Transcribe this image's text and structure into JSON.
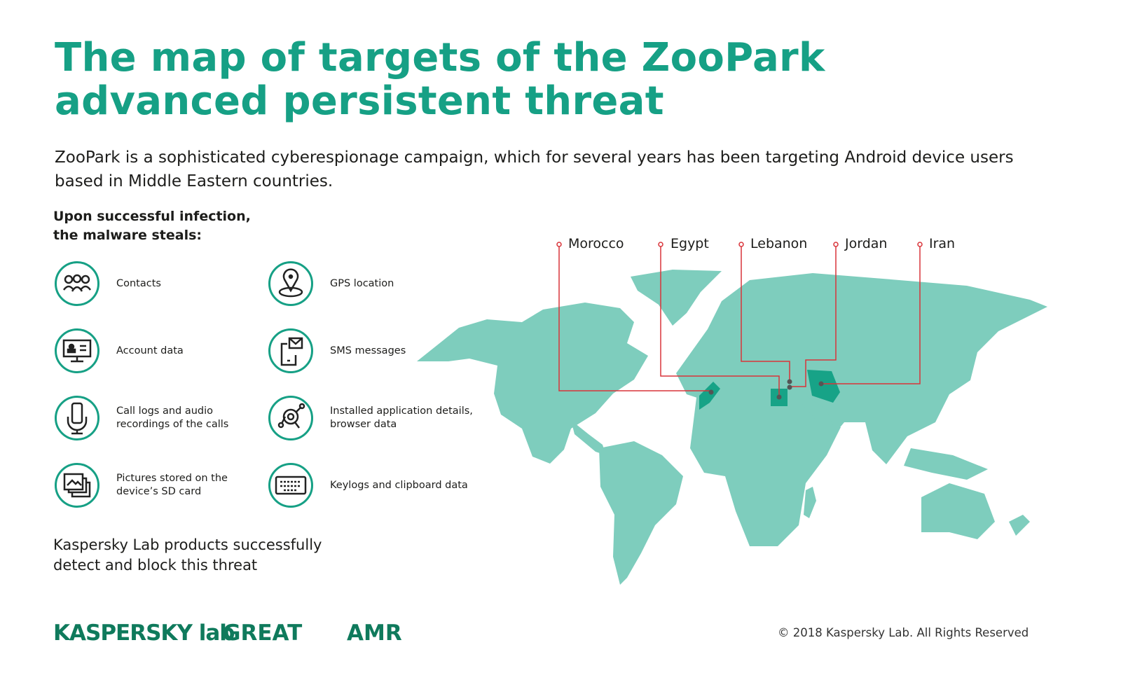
{
  "title": "The map of targets of the ZooPark advanced persistent threat",
  "subtitle": "ZooPark is a sophisticated cyberespionage campaign, which for several years has been targeting Android device users based in Middle Eastern countries.",
  "steals_heading": "Upon successful infection, the malware steals:",
  "items": [
    {
      "label": "Contacts",
      "icon": "contacts-icon"
    },
    {
      "label": "GPS location",
      "icon": "location-pin-icon"
    },
    {
      "label": "Account data",
      "icon": "account-monitor-icon"
    },
    {
      "label": "SMS messages",
      "icon": "sms-phone-icon"
    },
    {
      "label": "Call logs and audio recordings of the calls",
      "icon": "microphone-phone-icon"
    },
    {
      "label": "Installed application details, browser data",
      "icon": "app-search-icon"
    },
    {
      "label": "Pictures stored on the device’s SD card",
      "icon": "pictures-icon"
    },
    {
      "label": "Keylogs and clipboard data",
      "icon": "keyboard-icon"
    }
  ],
  "detect_note": "Kaspersky Lab products successfully detect and block this threat",
  "targets": [
    "Morocco",
    "Egypt",
    "Lebanon",
    "Jordan",
    "Iran"
  ],
  "logos": {
    "kaspersky": "KASPERSKY lab",
    "great": "GREAT",
    "amr": "AMR"
  },
  "copyright": "© 2018  Kaspersky Lab. All Rights Reserved",
  "colors": {
    "accent": "#16a085",
    "map_land": "#7ecdbd",
    "map_target": "#17a387",
    "callout_line": "#d9343a",
    "logo": "#0f7a5c"
  }
}
